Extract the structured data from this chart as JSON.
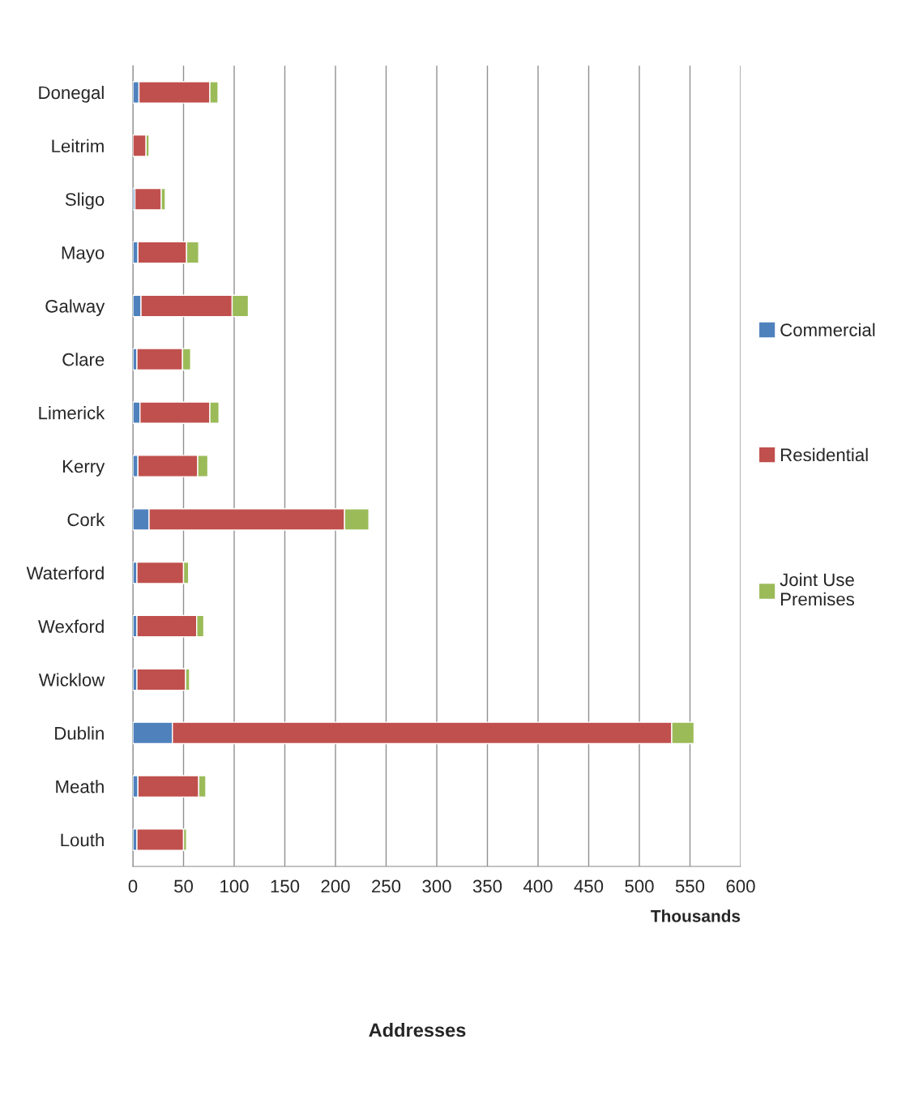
{
  "chart_data": {
    "type": "bar",
    "orientation": "horizontal",
    "stacked": true,
    "title": "Addresses",
    "xlabel": "Thousands",
    "categories": [
      "Donegal",
      "Leitrim",
      "Sligo",
      "Mayo",
      "Galway",
      "Clare",
      "Limerick",
      "Kerry",
      "Cork",
      "Waterford",
      "Wexford",
      "Wicklow",
      "Dublin",
      "Meath",
      "Louth"
    ],
    "series": [
      {
        "name": "Commercial",
        "color": "#4f81bd",
        "values": [
          6,
          null,
          2,
          5,
          8,
          4,
          7,
          5,
          16,
          4,
          4,
          4,
          39,
          5,
          4
        ]
      },
      {
        "name": "Residential",
        "color": "#c0504d",
        "values": [
          70,
          13,
          26,
          48,
          90,
          45,
          69,
          59,
          193,
          46,
          59,
          48,
          493,
          60,
          46
        ]
      },
      {
        "name": "Joint Use Premises",
        "color": "#9bbb59",
        "values": [
          8,
          3,
          4,
          12,
          16,
          8,
          9,
          10,
          24,
          5,
          7,
          4,
          22,
          7,
          3
        ]
      }
    ],
    "xlim": [
      0,
      600
    ],
    "xticks": [
      0,
      50,
      100,
      150,
      200,
      250,
      300,
      350,
      400,
      450,
      500,
      550,
      600
    ],
    "grid": "x",
    "legend": "right"
  }
}
